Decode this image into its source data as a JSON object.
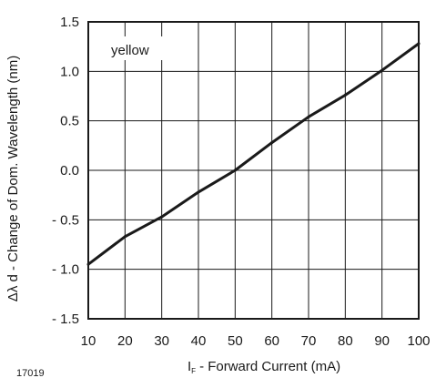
{
  "chart_data": {
    "type": "line",
    "title": "",
    "xlabel": "- Forward Current (mA)",
    "xlabel_symbol": "I",
    "xlabel_subscript": "F",
    "ylabel": "Δλ d  - Change of Dom. Wavelength (nm)",
    "xlim": [
      10,
      100
    ],
    "ylim": [
      -1.5,
      1.5
    ],
    "x_ticks": [
      10,
      20,
      30,
      40,
      50,
      60,
      70,
      80,
      90,
      100
    ],
    "x_tick_labels": [
      "10",
      "20",
      "30",
      "40",
      "50",
      "60",
      "70",
      "80",
      "90",
      "100"
    ],
    "y_ticks": [
      1.5,
      1.0,
      0.5,
      0.0,
      -0.5,
      -1.0,
      -1.5
    ],
    "y_tick_labels": [
      "1.5",
      "1.0",
      "0.5",
      "0.0",
      "- 0.5",
      "- 1.0",
      "- 1.5"
    ],
    "grid": true,
    "annotation": "yellow",
    "figure_id": "17019",
    "series": [
      {
        "x": [
          10,
          20,
          30,
          40,
          50,
          60,
          70,
          80,
          90,
          100
        ],
        "y": [
          -0.95,
          -0.67,
          -0.47,
          -0.22,
          0.0,
          0.28,
          0.54,
          0.76,
          1.01,
          1.28
        ]
      }
    ]
  }
}
